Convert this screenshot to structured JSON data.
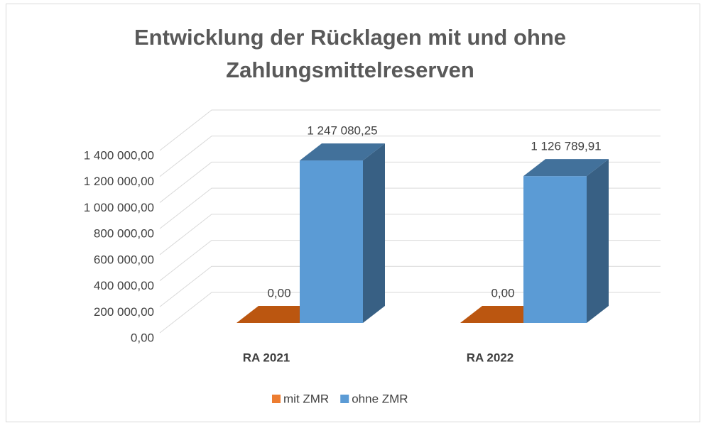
{
  "chart_data": {
    "type": "bar3d",
    "title": "Entwicklung der Rücklagen mit und ohne Zahlungsmittelreserven",
    "categories": [
      "RA 2021",
      "RA 2022"
    ],
    "series": [
      {
        "name": "mit ZMR",
        "color": "#ed7d31",
        "values": [
          0,
          0
        ],
        "value_labels": [
          "0,00",
          "0,00"
        ]
      },
      {
        "name": "ohne ZMR",
        "color": "#5b9bd5",
        "values": [
          1247080.25,
          1126789.91
        ],
        "value_labels": [
          "1 247 080,25",
          "1 126 789,91"
        ]
      }
    ],
    "ylim": [
      0,
      1400000
    ],
    "yticks": [
      {
        "value": 0,
        "label": "0,00"
      },
      {
        "value": 200000,
        "label": "200 000,00"
      },
      {
        "value": 400000,
        "label": "400 000,00"
      },
      {
        "value": 600000,
        "label": "600 000,00"
      },
      {
        "value": 800000,
        "label": "800 000,00"
      },
      {
        "value": 1000000,
        "label": "1 000 000,00"
      },
      {
        "value": 1200000,
        "label": "1 200 000,00"
      },
      {
        "value": 1400000,
        "label": "1 400 000,00"
      }
    ],
    "grid": true,
    "legend": "bottom"
  }
}
